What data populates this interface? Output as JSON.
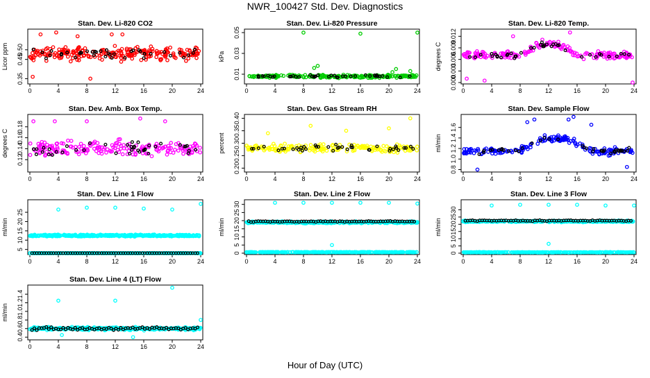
{
  "title": "NWR_100427  Std. Dev. Diagnostics",
  "xlabel": "Hour of Day (UTC)",
  "colors": {
    "red": "#ff0000",
    "green": "#00cc00",
    "magenta": "#ff00ff",
    "yellow": "#ffff00",
    "blue": "#0000ff",
    "cyan": "#00ffff",
    "black": "#000000"
  },
  "chart_data": [
    {
      "type": "scatter",
      "title": "Stan. Dev. Li-820 CO2",
      "ylabel": "Licor ppm",
      "xlim": [
        0,
        24
      ],
      "ylim": [
        0.33,
        0.6
      ],
      "yticks": [
        "0.35",
        "0.45",
        "0.50"
      ],
      "ytick_values": [
        0.35,
        0.45,
        0.5
      ],
      "xticks": [
        "0",
        "4",
        "8",
        "12",
        "16",
        "20",
        "24"
      ],
      "color": "red",
      "bands": [
        {
          "center": 0.48,
          "spread": 0.05,
          "density": 10
        }
      ],
      "outliers": [
        [
          0.4,
          0.36
        ],
        [
          8.5,
          0.35
        ],
        [
          1.5,
          0.58
        ],
        [
          3.7,
          0.59
        ],
        [
          6.7,
          0.57
        ],
        [
          11.5,
          0.58
        ],
        [
          13,
          0.58
        ]
      ]
    },
    {
      "type": "scatter",
      "title": "Stan. Dev. Li-820 Pressure",
      "ylabel": "kPa",
      "xlim": [
        0,
        24
      ],
      "ylim": [
        0.002,
        0.052
      ],
      "yticks": [
        "0.01",
        "0.03",
        "0.05"
      ],
      "ytick_values": [
        0.01,
        0.03,
        0.05
      ],
      "xticks": [
        "0",
        "4",
        "8",
        "12",
        "16",
        "20",
        "24"
      ],
      "color": "green",
      "bands": [
        {
          "center": 0.008,
          "spread": 0.002,
          "density": 9
        }
      ],
      "outliers": [
        [
          8,
          0.05
        ],
        [
          16,
          0.049
        ],
        [
          24,
          0.05
        ],
        [
          10,
          0.018
        ],
        [
          9.5,
          0.016
        ],
        [
          21,
          0.015
        ],
        [
          20.5,
          0.012
        ],
        [
          23,
          0.013
        ]
      ]
    },
    {
      "type": "scatter",
      "title": "Stan. Dev. Li-820 Temp.",
      "ylabel": "degrees C",
      "xlim": [
        0,
        24
      ],
      "ylim": [
        0,
        0.0135
      ],
      "yticks": [
        "0.000",
        "0.003",
        "0.006",
        "0.009",
        "0.012"
      ],
      "ytick_values": [
        0,
        0.003,
        0.006,
        0.009,
        0.012
      ],
      "xticks": [
        "0",
        "4",
        "8",
        "12",
        "16",
        "20",
        "24"
      ],
      "color": "magenta",
      "bands": [
        {
          "center": 0.007,
          "spread": 0.0015,
          "density": 8,
          "hump": [
            8,
            16,
            0.003
          ]
        }
      ],
      "outliers": [
        [
          0.5,
          0.001
        ],
        [
          3,
          0.0005
        ],
        [
          23.8,
          0.0
        ],
        [
          7,
          0.012
        ],
        [
          15,
          0.013
        ]
      ]
    },
    {
      "type": "scatter",
      "title": "Stan. Dev. Amb. Box Temp.",
      "ylabel": "degrees C",
      "xlim": [
        0,
        24
      ],
      "ylim": [
        0.1,
        0.2
      ],
      "yticks": [
        "0.12",
        "0.14",
        "0.16",
        "0.18"
      ],
      "ytick_values": [
        0.12,
        0.14,
        0.16,
        0.18
      ],
      "xticks": [
        "0",
        "4",
        "8",
        "12",
        "16",
        "20",
        "24"
      ],
      "color": "magenta",
      "bands": [
        {
          "center": 0.14,
          "spread": 0.02,
          "density": 8
        }
      ],
      "outliers": [
        [
          0.5,
          0.19
        ],
        [
          3.5,
          0.19
        ],
        [
          8,
          0.19
        ],
        [
          15.5,
          0.195
        ],
        [
          19,
          0.19
        ]
      ]
    },
    {
      "type": "scatter",
      "title": "Stan. Dev. Gas Stream RH",
      "ylabel": "percent",
      "xlim": [
        0,
        24
      ],
      "ylim": [
        0.19,
        0.41
      ],
      "yticks": [
        "0.20",
        "0.25",
        "0.30",
        "0.35",
        "0.40"
      ],
      "ytick_values": [
        0.2,
        0.25,
        0.3,
        0.35,
        0.4
      ],
      "xticks": [
        "0",
        "4",
        "8",
        "12",
        "16",
        "20",
        "24"
      ],
      "color": "yellow",
      "bands": [
        {
          "center": 0.28,
          "spread": 0.025,
          "density": 8
        }
      ],
      "outliers": [
        [
          23,
          0.4
        ],
        [
          9,
          0.37
        ],
        [
          14,
          0.35
        ],
        [
          3,
          0.34
        ],
        [
          20,
          0.36
        ]
      ]
    },
    {
      "type": "scatter",
      "title": "Stan. Dev. Sample Flow",
      "ylabel": "ml/min",
      "xlim": [
        0,
        24
      ],
      "ylim": [
        0.78,
        1.82
      ],
      "yticks": [
        "0.8",
        "1.0",
        "1.2",
        "1.4",
        "1.6"
      ],
      "ytick_values": [
        0.8,
        1.0,
        1.2,
        1.4,
        1.6
      ],
      "xticks": [
        "0",
        "4",
        "8",
        "12",
        "16",
        "20",
        "24"
      ],
      "color": "blue",
      "bands": [
        {
          "center": 1.15,
          "spread": 0.1,
          "density": 8,
          "hump": [
            8,
            18,
            0.25
          ]
        }
      ],
      "outliers": [
        [
          15.5,
          1.8
        ],
        [
          14.8,
          1.75
        ],
        [
          10,
          1.75
        ],
        [
          9,
          1.7
        ],
        [
          18,
          1.65
        ],
        [
          2,
          0.8
        ],
        [
          23,
          0.85
        ]
      ]
    },
    {
      "type": "scatter",
      "title": "Stan. Dev. Line 1 Flow",
      "ylabel": "ml/min",
      "xlim": [
        0,
        24
      ],
      "ylim": [
        3,
        31
      ],
      "yticks": [
        "5",
        "10",
        "15",
        "20",
        "25"
      ],
      "ytick_values": [
        5,
        10,
        15,
        20,
        25
      ],
      "xticks": [
        "0",
        "4",
        "8",
        "12",
        "16",
        "20",
        "24"
      ],
      "color": "cyan",
      "bands": [
        {
          "center": 12.5,
          "spread": 0.7,
          "density": 16
        },
        {
          "center": 2,
          "spread": 0.2,
          "density": 14
        }
      ],
      "black_band": {
        "center": 2,
        "spread": 0.2
      },
      "outliers": [
        [
          4,
          26.5
        ],
        [
          8,
          27.5
        ],
        [
          12,
          27.5
        ],
        [
          16,
          27
        ],
        [
          20,
          26.5
        ],
        [
          24,
          29.5
        ]
      ]
    },
    {
      "type": "scatter",
      "title": "Stan. Dev. Line 2 Flow",
      "ylabel": "ml/min",
      "xlim": [
        0,
        24
      ],
      "ylim": [
        0,
        32
      ],
      "yticks": [
        "0",
        "5",
        "10",
        "15",
        "20",
        "25",
        "30"
      ],
      "ytick_values": [
        0,
        5,
        10,
        15,
        20,
        25,
        30
      ],
      "xticks": [
        "0",
        "4",
        "8",
        "12",
        "16",
        "20",
        "24"
      ],
      "color": "cyan",
      "bands": [
        {
          "center": 19,
          "spread": 0.8,
          "density": 16
        },
        {
          "center": 0.6,
          "spread": 0.2,
          "density": 14
        }
      ],
      "black_band": {
        "center": 19.5,
        "spread": 0.5
      },
      "outliers": [
        [
          4,
          31
        ],
        [
          8,
          31
        ],
        [
          12,
          31
        ],
        [
          16,
          31
        ],
        [
          20,
          31
        ],
        [
          24,
          30.5
        ],
        [
          12,
          5
        ]
      ]
    },
    {
      "type": "scatter",
      "title": "Stan. Dev. Line 3 Flow",
      "ylabel": "ml/min",
      "xlim": [
        0,
        24
      ],
      "ylim": [
        0,
        36
      ],
      "yticks": [
        "0",
        "5",
        "10",
        "15",
        "20",
        "25",
        "30"
      ],
      "ytick_values": [
        0,
        5,
        10,
        15,
        20,
        25,
        30
      ],
      "xticks": [
        "0",
        "4",
        "8",
        "12",
        "16",
        "20",
        "24"
      ],
      "color": "cyan",
      "bands": [
        {
          "center": 22,
          "spread": 0.7,
          "density": 16
        },
        {
          "center": 0.6,
          "spread": 0.2,
          "density": 14
        }
      ],
      "black_band": {
        "center": 22.5,
        "spread": 0.5
      },
      "outliers": [
        [
          4,
          33
        ],
        [
          8,
          33.5
        ],
        [
          12,
          33.5
        ],
        [
          16,
          33.5
        ],
        [
          20,
          33
        ],
        [
          24,
          33
        ],
        [
          12,
          6.5
        ]
      ]
    },
    {
      "type": "scatter",
      "title": "Stan. Dev. Line 4 (LT) Flow",
      "ylabel": "ml/min",
      "xlim": [
        0,
        24
      ],
      "ylim": [
        0.37,
        1.58
      ],
      "yticks": [
        "0.4",
        "0.6",
        "0.8",
        "1.0",
        "1.2",
        "1.4"
      ],
      "ytick_values": [
        0.4,
        0.6,
        0.8,
        1.0,
        1.2,
        1.4
      ],
      "xticks": [
        "0",
        "4",
        "8",
        "12",
        "16",
        "20",
        "24"
      ],
      "color": "cyan",
      "bands": [
        {
          "center": 0.6,
          "spread": 0.05,
          "density": 14
        }
      ],
      "black_band": {
        "center": 0.6,
        "spread": 0.05
      },
      "outliers": [
        [
          20,
          1.55
        ],
        [
          4,
          1.25
        ],
        [
          12,
          1.25
        ],
        [
          24,
          0.8
        ],
        [
          14.5,
          0.4
        ],
        [
          4.5,
          0.45
        ]
      ]
    }
  ]
}
